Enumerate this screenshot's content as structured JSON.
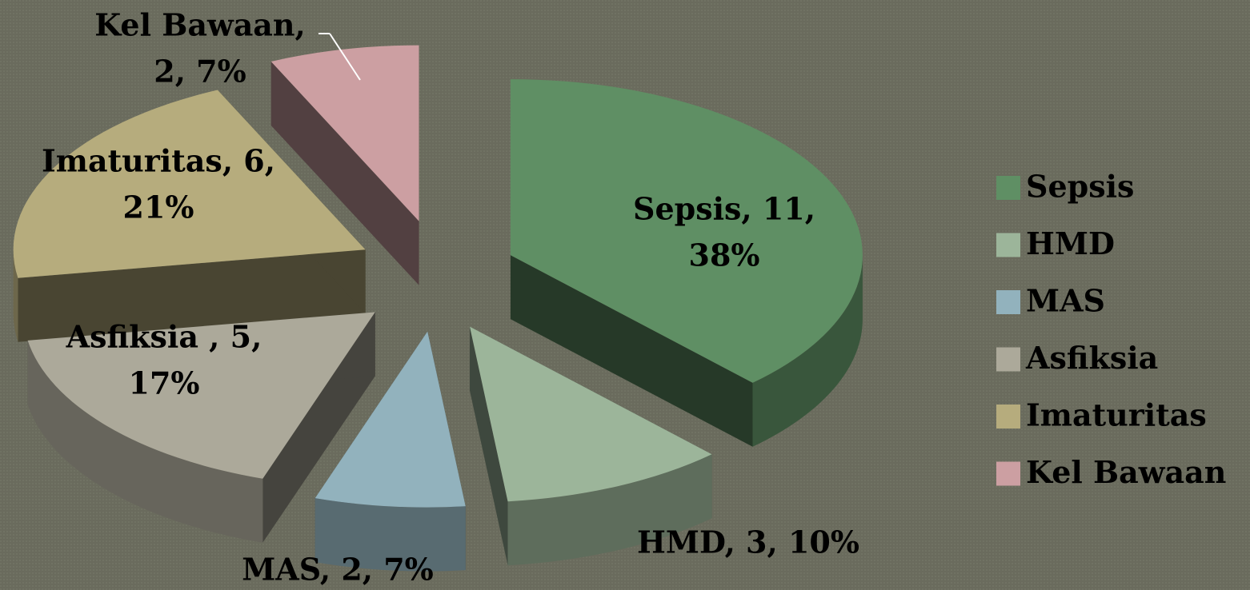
{
  "chart_data": {
    "type": "pie3d",
    "categories": [
      "Sepsis",
      "HMD",
      "MAS",
      "Asfiksia",
      "Imaturitas",
      "Kel Bawaan"
    ],
    "values": [
      11,
      3,
      2,
      5,
      6,
      2
    ],
    "value_labels": [
      [
        "Sepsis, 11,",
        "38%"
      ],
      [
        "HMD, 3, 10%"
      ],
      [
        "MAS, 2, 7%"
      ],
      [
        "Asfiksia , 5,",
        "17%"
      ],
      [
        "Imaturitas, 6,",
        "21%"
      ],
      [
        "Kel Bawaan,",
        "2, 7%"
      ]
    ],
    "colors": [
      "#5f8f64",
      "#9cb59a",
      "#92b2bd",
      "#aca99a",
      "#b6ac7d",
      "#cc9fa2"
    ],
    "legend": "right"
  }
}
